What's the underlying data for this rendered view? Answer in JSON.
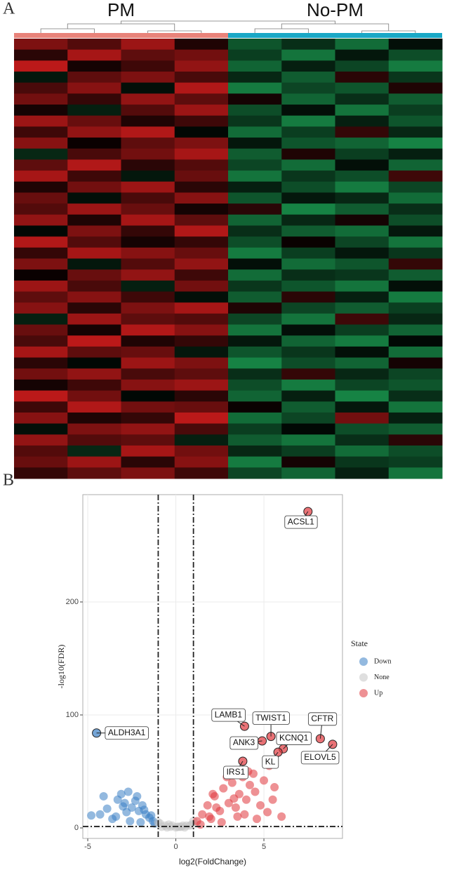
{
  "chart_data": [
    {
      "type": "heatmap",
      "panel": "A",
      "column_groups": [
        {
          "name": "PM",
          "color": "#e8837a",
          "columns": 4
        },
        {
          "name": "No-PM",
          "color": "#1aa8c6",
          "columns": 4
        }
      ],
      "color_range": [
        -2,
        2
      ],
      "colors": {
        "low": "#1a9a50",
        "mid": "#000000",
        "high": "#d01c1c"
      },
      "values": [
        [
          1.2,
          0.8,
          1.5,
          0.3,
          -1.1,
          -0.6,
          -1.4,
          -0.2
        ],
        [
          0.4,
          1.6,
          0.9,
          1.1,
          -0.8,
          -1.5,
          -0.3,
          -1.0
        ],
        [
          1.8,
          0.2,
          0.6,
          1.4,
          -1.3,
          -0.4,
          -0.9,
          -1.6
        ],
        [
          -0.3,
          0.9,
          1.2,
          0.7,
          -0.5,
          -1.2,
          0.4,
          -0.7
        ],
        [
          0.7,
          1.3,
          -0.2,
          1.7,
          -1.6,
          -0.9,
          -1.1,
          0.3
        ],
        [
          1.1,
          0.5,
          1.4,
          0.9,
          0.2,
          -1.3,
          -0.6,
          -1.2
        ],
        [
          0.2,
          -0.4,
          0.8,
          1.5,
          -1.0,
          -0.2,
          -1.5,
          -0.8
        ],
        [
          1.5,
          1.0,
          0.3,
          0.6,
          -0.7,
          -1.6,
          -0.4,
          -1.1
        ],
        [
          0.6,
          1.4,
          1.7,
          -0.1,
          -1.4,
          -0.8,
          0.5,
          -0.5
        ],
        [
          1.3,
          0.1,
          0.9,
          1.2,
          -0.3,
          -1.1,
          -1.3,
          -1.7
        ],
        [
          -0.5,
          0.7,
          1.1,
          1.6,
          -1.2,
          0.3,
          -0.8,
          -0.4
        ],
        [
          0.9,
          1.7,
          0.4,
          0.8,
          -0.9,
          -1.4,
          -0.2,
          -1.3
        ],
        [
          1.6,
          0.6,
          -0.3,
          1.0,
          -1.5,
          -0.7,
          -1.0,
          0.6
        ],
        [
          0.3,
          1.1,
          1.5,
          0.4,
          -0.4,
          -1.0,
          -1.6,
          -0.9
        ],
        [
          1.0,
          -0.2,
          0.7,
          1.3,
          -1.1,
          -0.3,
          -0.5,
          -1.4
        ],
        [
          0.8,
          1.5,
          1.0,
          0.2,
          0.4,
          -1.7,
          -1.2,
          -0.6
        ],
        [
          1.4,
          0.3,
          1.6,
          0.9,
          -1.3,
          -0.5,
          0.2,
          -1.0
        ],
        [
          -0.1,
          1.2,
          0.5,
          1.7,
          -0.6,
          -1.2,
          -1.4,
          -0.3
        ],
        [
          1.7,
          0.8,
          0.2,
          0.5,
          -1.0,
          0.1,
          -0.9,
          -1.5
        ],
        [
          0.5,
          1.6,
          1.3,
          1.0,
          -1.6,
          -0.8,
          -0.3,
          -0.7
        ],
        [
          1.2,
          -0.3,
          0.8,
          1.4,
          -0.2,
          -1.4,
          -1.1,
          0.5
        ],
        [
          0.1,
          1.0,
          1.4,
          0.6,
          -1.4,
          -0.6,
          -0.7,
          -1.2
        ],
        [
          1.5,
          0.7,
          -0.4,
          1.1,
          -0.7,
          -1.1,
          -1.5,
          -0.2
        ],
        [
          0.9,
          1.3,
          0.6,
          -0.2,
          -1.2,
          0.4,
          -0.4,
          -1.6
        ],
        [
          1.3,
          0.4,
          1.2,
          1.6,
          0.3,
          -0.9,
          -1.2,
          -0.8
        ],
        [
          -0.4,
          1.5,
          0.9,
          0.8,
          -0.9,
          -1.5,
          0.6,
          -0.5
        ],
        [
          1.0,
          0.2,
          1.7,
          1.3,
          -1.5,
          -0.2,
          -0.8,
          -1.3
        ],
        [
          0.7,
          1.8,
          0.3,
          0.5,
          -0.3,
          -1.3,
          -1.6,
          -0.1
        ],
        [
          1.6,
          0.9,
          1.0,
          -0.3,
          -1.1,
          -0.7,
          -0.2,
          -1.4
        ],
        [
          0.4,
          -0.1,
          1.5,
          1.2,
          -1.7,
          -1.0,
          -1.3,
          0.2
        ],
        [
          1.1,
          1.4,
          0.7,
          0.9,
          -0.6,
          0.5,
          -0.5,
          -0.9
        ],
        [
          0.2,
          0.6,
          1.3,
          1.5,
          -1.0,
          -1.6,
          -0.9,
          -1.1
        ],
        [
          1.8,
          1.1,
          -0.1,
          0.4,
          -1.3,
          -0.4,
          -1.7,
          -0.6
        ],
        [
          0.6,
          1.7,
          1.1,
          1.0,
          0.1,
          -1.2,
          -0.3,
          -1.5
        ],
        [
          1.3,
          0.3,
          0.5,
          1.8,
          -1.4,
          -0.9,
          1.1,
          -0.4
        ],
        [
          -0.2,
          1.2,
          1.4,
          0.7,
          -0.8,
          -0.1,
          -1.0,
          -1.2
        ],
        [
          1.4,
          0.8,
          0.9,
          -0.4,
          -1.2,
          -1.5,
          -0.6,
          0.4
        ],
        [
          0.8,
          -0.5,
          1.6,
          1.1,
          -0.5,
          -0.8,
          -1.4,
          -1.0
        ],
        [
          1.0,
          1.5,
          0.4,
          1.3,
          -1.6,
          0.2,
          -0.7,
          -0.8
        ],
        [
          0.5,
          0.9,
          1.2,
          0.6,
          -0.9,
          -1.3,
          -0.4,
          -1.5
        ]
      ]
    },
    {
      "type": "scatter",
      "panel": "B",
      "x_label": "log2(FoldChange)",
      "y_label": "-log10(FDR)",
      "xlim": [
        -5.28,
        9.46
      ],
      "ylim": [
        -9.3,
        295
      ],
      "xticks": [
        -5,
        0,
        5
      ],
      "yticks": [
        0,
        100,
        200
      ],
      "grid": true,
      "vlines": [
        -1,
        1
      ],
      "hlines": [
        1.3
      ],
      "legend_title": "State",
      "legend": "right",
      "series": [
        {
          "name": "Down",
          "color": "#3b7fc4",
          "x": [
            -4.5,
            -4.8,
            -4.3,
            -4.1,
            -3.9,
            -3.6,
            -3.3,
            -3.1,
            -2.9,
            -2.7,
            -2.5,
            -2.3,
            -2.1,
            -1.9,
            -1.7,
            -1.5,
            -1.3,
            -1.2,
            -2.8,
            -3.4,
            -2.2,
            -1.8,
            -2.6,
            -3.0,
            -1.4,
            -2.0
          ],
          "y": [
            84,
            11,
            12,
            28,
            17,
            8,
            25,
            30,
            22,
            32,
            18,
            24,
            15,
            20,
            12,
            9,
            6,
            4,
            14,
            10,
            28,
            16,
            6,
            19,
            11,
            5
          ],
          "labels": [
            "ALDH3A1",
            null,
            null,
            null,
            null,
            null,
            null,
            null,
            null,
            null,
            null,
            null,
            null,
            null,
            null,
            null,
            null,
            null,
            null,
            null,
            null,
            null,
            null,
            null,
            null,
            null
          ]
        },
        {
          "name": "None",
          "color": "#c4c4c4",
          "x": [
            -0.9,
            -0.6,
            -0.3,
            0,
            0.3,
            0.6,
            0.9,
            -0.8,
            -0.5,
            -0.2,
            0.2,
            0.5,
            0.8,
            -1.0,
            1.0,
            -0.4,
            0.4,
            0.1
          ],
          "y": [
            4,
            2,
            1,
            0.5,
            1,
            2,
            3,
            1,
            0.5,
            2,
            1,
            0.5,
            2,
            5,
            6,
            3,
            2,
            1
          ],
          "labels": [
            null,
            null,
            null,
            null,
            null,
            null,
            null,
            null,
            null,
            null,
            null,
            null,
            null,
            null,
            null,
            null,
            null,
            null
          ]
        },
        {
          "name": "Up",
          "color": "#e0363c",
          "x": [
            7.5,
            3.9,
            5.4,
            4.9,
            6.1,
            8.2,
            8.9,
            5.8,
            3.8,
            1.2,
            1.5,
            1.8,
            2.0,
            2.2,
            2.5,
            2.7,
            3.0,
            3.2,
            3.4,
            3.6,
            3.8,
            4.0,
            4.2,
            4.5,
            4.8,
            5.0,
            5.3,
            5.6,
            6.0,
            1.4,
            2.3,
            2.9,
            3.5,
            4.1,
            4.6,
            5.2,
            3.3,
            2.6,
            3.9,
            4.4,
            5.5,
            1.9,
            2.1
          ],
          "y": [
            280,
            90,
            81,
            77,
            70,
            79,
            74,
            67,
            59,
            6,
            12,
            20,
            8,
            28,
            15,
            35,
            22,
            40,
            18,
            30,
            45,
            25,
            38,
            32,
            20,
            42,
            55,
            36,
            10,
            3,
            18,
            45,
            10,
            50,
            8,
            14,
            26,
            5,
            12,
            48,
            25,
            10,
            30
          ],
          "labels": [
            "ACSL1",
            "LAMB1",
            "TWIST1",
            "ANK3",
            "KCNQ1",
            "CFTR",
            "ELOVL5",
            "KL",
            "IRS1",
            null,
            null,
            null,
            null,
            null,
            null,
            null,
            null,
            null,
            null,
            null,
            null,
            null,
            null,
            null,
            null,
            null,
            null,
            null,
            null,
            null,
            null,
            null,
            null,
            null,
            null,
            null,
            null,
            null,
            null,
            null,
            null,
            null,
            null
          ]
        }
      ]
    }
  ]
}
